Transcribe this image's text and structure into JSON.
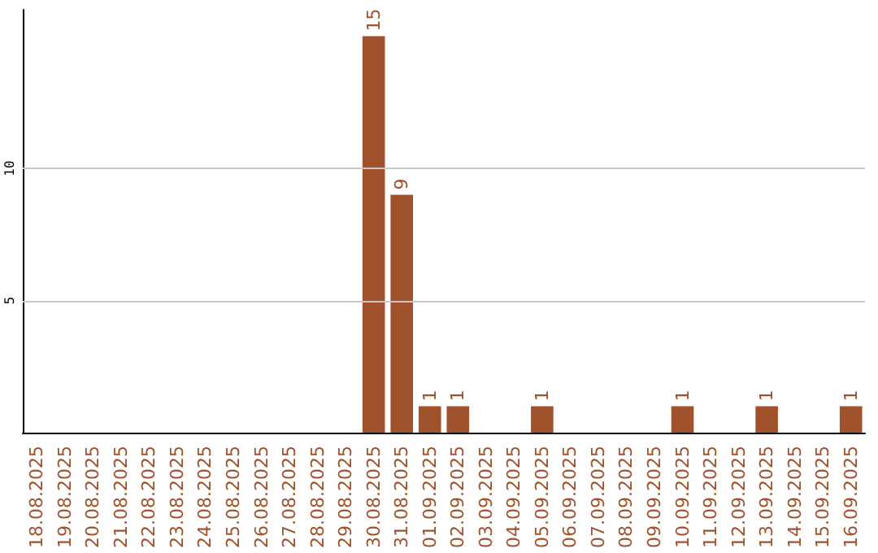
{
  "chart_data": {
    "type": "bar",
    "categories": [
      "18.08.2025",
      "19.08.2025",
      "20.08.2025",
      "21.08.2025",
      "22.08.2025",
      "23.08.2025",
      "24.08.2025",
      "25.08.2025",
      "26.08.2025",
      "27.08.2025",
      "28.08.2025",
      "29.08.2025",
      "30.08.2025",
      "31.08.2025",
      "01.09.2025",
      "02.09.2025",
      "03.09.2025",
      "04.09.2025",
      "05.09.2025",
      "06.09.2025",
      "07.09.2025",
      "08.09.2025",
      "09.09.2025",
      "10.09.2025",
      "11.09.2025",
      "12.09.2025",
      "13.09.2025",
      "14.09.2025",
      "15.09.2025",
      "16.09.2025"
    ],
    "values": [
      0,
      0,
      0,
      0,
      0,
      0,
      0,
      0,
      0,
      0,
      0,
      0,
      15,
      9,
      1,
      1,
      0,
      0,
      1,
      0,
      0,
      0,
      0,
      1,
      0,
      0,
      1,
      0,
      0,
      1
    ],
    "value_labels": [
      null,
      null,
      null,
      null,
      null,
      null,
      null,
      null,
      null,
      null,
      null,
      null,
      "15",
      "9",
      "1",
      "1",
      null,
      null,
      "1",
      null,
      null,
      null,
      null,
      "1",
      null,
      null,
      "1",
      null,
      null,
      "1"
    ],
    "color": "#a0522d",
    "ylim": [
      0,
      16
    ],
    "yticks": [
      5,
      10
    ],
    "grid": "y"
  }
}
